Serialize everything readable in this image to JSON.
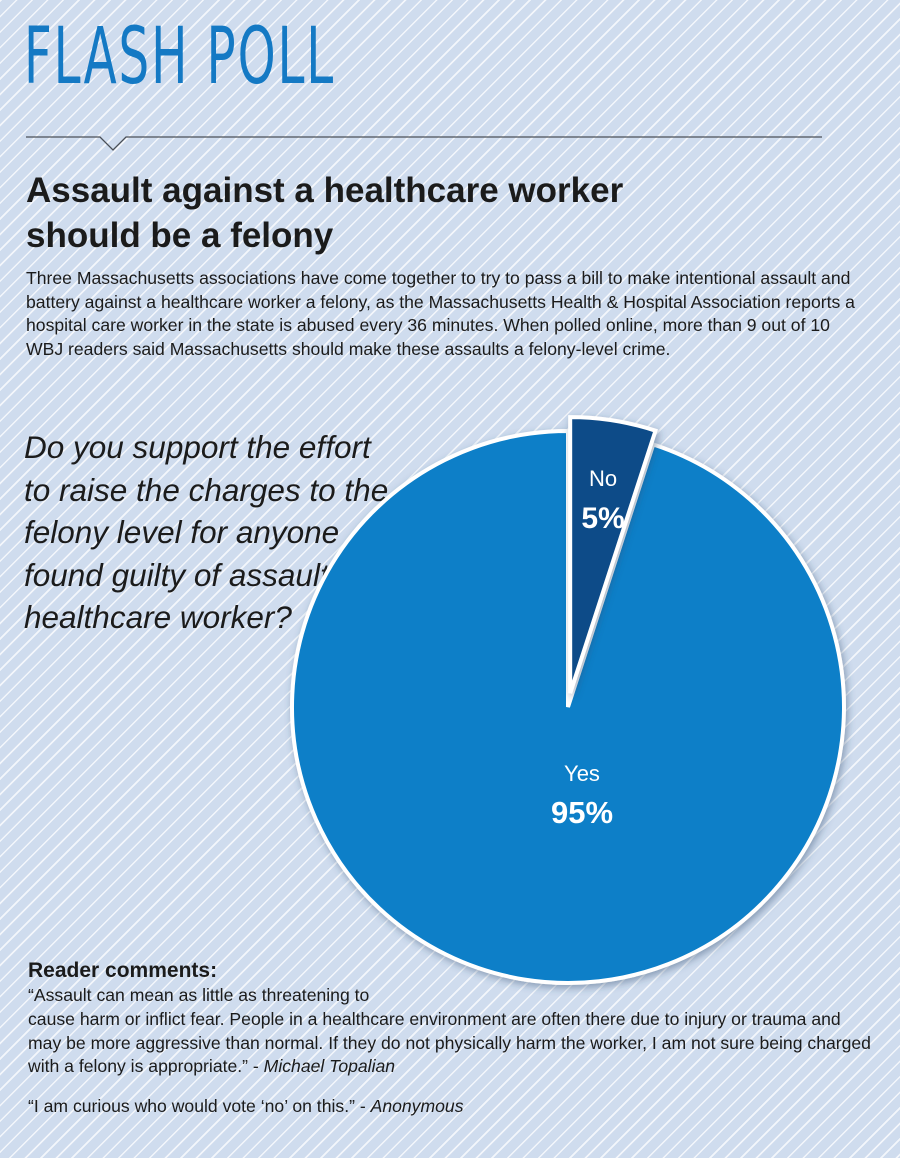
{
  "header": {
    "title": "FLASH POLL"
  },
  "headline": "Assault against a healthcare worker should be a felony",
  "intro": "Three Massachusetts associations have come together to try to pass a bill to make intentional assault and battery against a healthcare worker a felony, as the Massachusetts Health & Hospital Association reports a hospital care worker in the state is abused every 36 minutes. When polled online, more than 9 out of 10 WBJ readers said Massachusetts should make these assaults a felony-level crime.",
  "question": "Do you support the effort to raise the charges to the felony level for anyone found guilty of assaulting a healthcare worker?",
  "chart_data": {
    "type": "pie",
    "title": "",
    "slices": [
      {
        "label": "Yes",
        "value": 95,
        "display": "95%",
        "color": "#0a7fc8"
      },
      {
        "label": "No",
        "value": 5,
        "display": "5%",
        "color": "#0d4b88"
      }
    ],
    "legend": "none",
    "start": "top",
    "exploded": "No"
  },
  "comments": {
    "heading": "Reader comments:",
    "items": [
      {
        "lead": "“Assault can mean as little as threatening to",
        "text": "cause harm or inflict fear. People in a healthcare environment are often there due to injury or trauma and may be more aggressive than normal. If they do not physically harm the worker, I am not sure being charged with a felony is appropriate.” - ",
        "author": "Michael Topalian"
      },
      {
        "lead": "",
        "text": "“I am curious who would vote ‘no’ on this.” - ",
        "author": "Anonymous"
      }
    ]
  }
}
